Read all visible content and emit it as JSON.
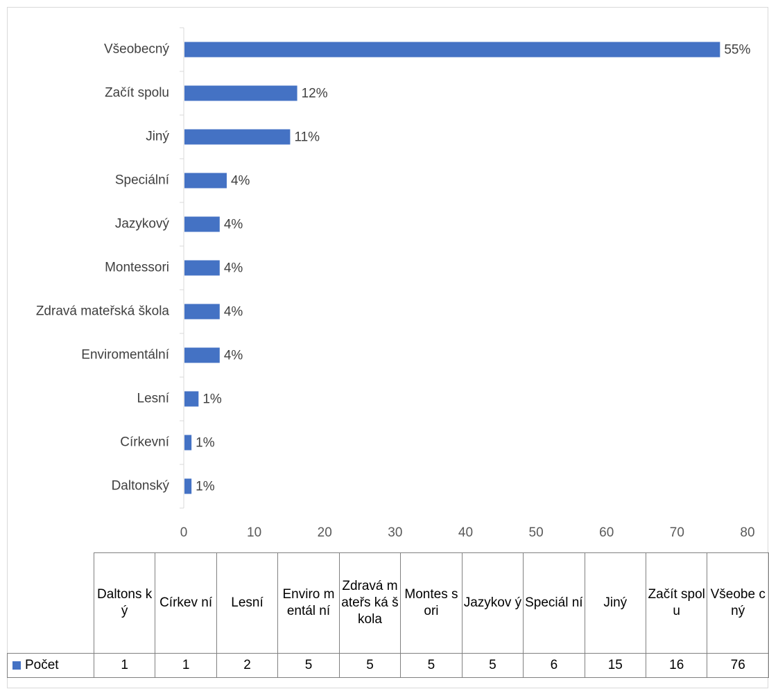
{
  "chart_data": {
    "type": "bar",
    "orientation": "horizontal",
    "categories": [
      "Daltonský",
      "Církevní",
      "Lesní",
      "Enviromentální",
      "Zdravá mateřská škola",
      "Montessori",
      "Jazykový",
      "Speciální",
      "Jiný",
      "Začít spolu",
      "Všeobecný"
    ],
    "table_headers": [
      "Daltons ký",
      "Církev ní",
      "Lesní",
      "Enviro mentál ní",
      "Zdravá mateřs ká škola",
      "Montes sori",
      "Jazykov ý",
      "Speciál ní",
      "Jiný",
      "Začít spolu",
      "Všeobe cný"
    ],
    "series": [
      {
        "name": "Počet",
        "values": [
          1,
          1,
          2,
          5,
          5,
          5,
          5,
          6,
          15,
          16,
          76
        ],
        "color": "#4472c4"
      }
    ],
    "data_labels": [
      "1%",
      "1%",
      "1%",
      "4%",
      "4%",
      "4%",
      "4%",
      "4%",
      "11%",
      "12%",
      "55%"
    ],
    "xlim": [
      0,
      80
    ],
    "xticks": [
      0,
      10,
      20,
      30,
      40,
      50,
      60,
      70,
      80
    ],
    "grid": false,
    "legend": "data-table",
    "title": "",
    "xlabel": "",
    "ylabel": ""
  }
}
